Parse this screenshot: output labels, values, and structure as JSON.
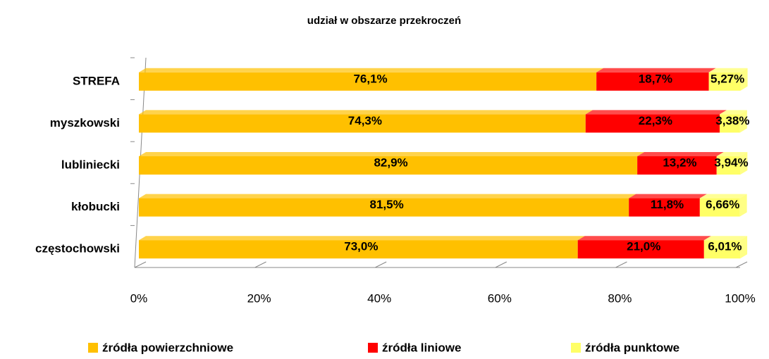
{
  "chart_data": {
    "type": "stacked-bar-horizontal",
    "title": "udział w obszarze przekroczeń",
    "categories": [
      "STREFA",
      "myszkowski",
      "lubliniecki",
      "kłobucki",
      "częstochowski"
    ],
    "series": [
      {
        "name": "źródła powierzchniowe",
        "color": "#ffc000",
        "values": [
          76.1,
          74.3,
          82.9,
          81.5,
          73.0
        ],
        "value_labels": [
          "76,1%",
          "74,3%",
          "82,9%",
          "81,5%",
          "73,0%"
        ]
      },
      {
        "name": "źródła liniowe",
        "color": "#ff0000",
        "values": [
          18.7,
          22.3,
          13.2,
          11.8,
          21.0
        ],
        "value_labels": [
          "18,7%",
          "22,3%",
          "13,2%",
          "11,8%",
          "21,0%"
        ]
      },
      {
        "name": "źródła punktowe",
        "color": "#ffff66",
        "values": [
          5.27,
          3.38,
          3.94,
          6.66,
          6.01
        ],
        "value_labels": [
          "5,27%",
          "3,38%",
          "3,94%",
          "6,66%",
          "6,01%"
        ]
      }
    ],
    "xlim": [
      0,
      100
    ],
    "xticks": [
      {
        "value": 0,
        "label": "0%"
      },
      {
        "value": 20,
        "label": "20%"
      },
      {
        "value": 40,
        "label": "40%"
      },
      {
        "value": 60,
        "label": "60%"
      },
      {
        "value": 80,
        "label": "80%"
      },
      {
        "value": 100,
        "label": "100%"
      }
    ],
    "grid": true,
    "legend": "bottom"
  }
}
